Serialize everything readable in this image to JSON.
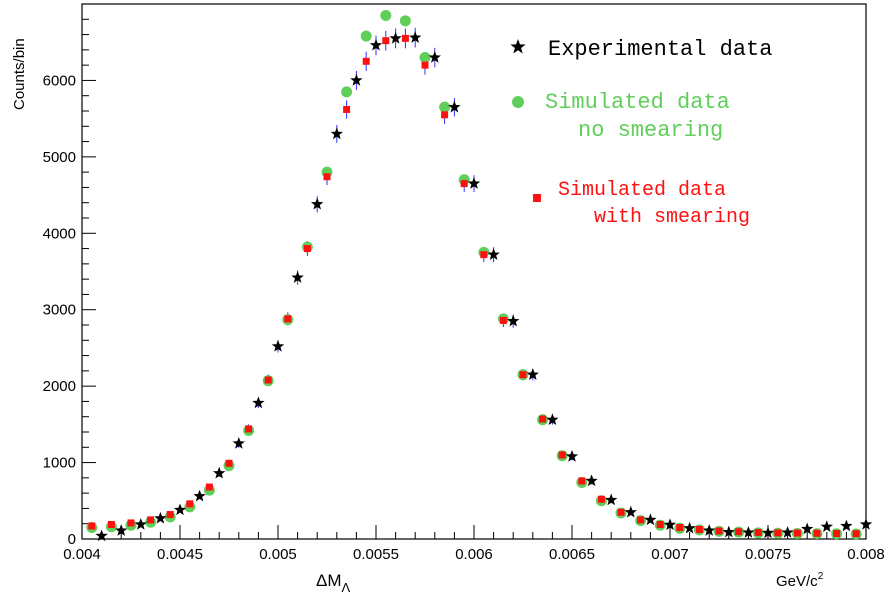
{
  "chart_data": {
    "type": "scatter",
    "xlabel_main": "ΔM",
    "xlabel_sub": "Λ",
    "xunit_main": "GeV/c",
    "xunit_sup": "2",
    "ylabel": "Counts/bin",
    "xlim": [
      0.004,
      0.008
    ],
    "ylim": [
      0,
      7000
    ],
    "grid": false,
    "legend_placement": "top-right",
    "x_ticks": [
      "0.004",
      "0.0045",
      "0.005",
      "0.0055",
      "0.006",
      "0.0065",
      "0.007",
      "0.0075",
      "0.008"
    ],
    "y_ticks": [
      "0",
      "1000",
      "2000",
      "3000",
      "4000",
      "5000",
      "6000"
    ],
    "colors": {
      "experimental": "#000000",
      "no_smearing": "#5fcf5a",
      "with_smearing": "#ff1010",
      "errorbar": "#3030ff"
    },
    "series": [
      {
        "name": "Experimental data",
        "name_lines": [
          "Experimental data"
        ],
        "marker": "star",
        "x": [
          0.0041,
          0.0042,
          0.0043,
          0.0044,
          0.0045,
          0.0046,
          0.0047,
          0.0048,
          0.0049,
          0.005,
          0.0051,
          0.0052,
          0.0053,
          0.0054,
          0.0055,
          0.0056,
          0.0057,
          0.0058,
          0.0059,
          0.006,
          0.0061,
          0.0062,
          0.0063,
          0.0064,
          0.0065,
          0.0066,
          0.0067,
          0.0068,
          0.0069,
          0.007,
          0.0071,
          0.0072,
          0.0073,
          0.0074,
          0.0075,
          0.0076,
          0.0077,
          0.0078,
          0.0079,
          0.008
        ],
        "y": [
          40,
          110,
          190,
          270,
          380,
          560,
          860,
          1250,
          1780,
          2520,
          3420,
          4380,
          5300,
          6000,
          6460,
          6550,
          6560,
          6300,
          5650,
          4650,
          3720,
          2850,
          2150,
          1560,
          1080,
          760,
          510,
          350,
          250,
          185,
          140,
          110,
          90,
          85,
          80,
          85,
          130,
          160,
          170,
          190
        ]
      },
      {
        "name": "Simulated data",
        "name_lines": [
          "Simulated data",
          "no smearing"
        ],
        "marker": "circle",
        "x": [
          0.00405,
          0.00415,
          0.00425,
          0.00435,
          0.00445,
          0.00455,
          0.00465,
          0.00475,
          0.00485,
          0.00495,
          0.00505,
          0.00515,
          0.00525,
          0.00535,
          0.00545,
          0.00555,
          0.00565,
          0.00575,
          0.00585,
          0.00595,
          0.00605,
          0.00615,
          0.00625,
          0.00635,
          0.00645,
          0.00655,
          0.00665,
          0.00675,
          0.00685,
          0.00695,
          0.00705,
          0.00715,
          0.00725,
          0.00735,
          0.00745,
          0.00755,
          0.00765,
          0.00775,
          0.00785,
          0.00795
        ],
        "y": [
          150,
          160,
          180,
          220,
          290,
          420,
          640,
          960,
          1420,
          2070,
          2870,
          3820,
          4800,
          5850,
          6580,
          6850,
          6780,
          6300,
          5650,
          4700,
          3750,
          2880,
          2150,
          1560,
          1090,
          740,
          500,
          340,
          240,
          180,
          140,
          120,
          100,
          90,
          80,
          75,
          72,
          70,
          68,
          65
        ]
      },
      {
        "name": "Simulated data",
        "name_lines": [
          "Simulated data",
          "with smearing"
        ],
        "marker": "square",
        "x": [
          0.00405,
          0.00415,
          0.00425,
          0.00435,
          0.00445,
          0.00455,
          0.00465,
          0.00475,
          0.00485,
          0.00495,
          0.00505,
          0.00515,
          0.00525,
          0.00535,
          0.00545,
          0.00555,
          0.00565,
          0.00575,
          0.00585,
          0.00595,
          0.00605,
          0.00615,
          0.00625,
          0.00635,
          0.00645,
          0.00655,
          0.00665,
          0.00675,
          0.00685,
          0.00695,
          0.00705,
          0.00715,
          0.00725,
          0.00735,
          0.00745,
          0.00755,
          0.00765,
          0.00775,
          0.00785,
          0.00795
        ],
        "y": [
          170,
          190,
          210,
          250,
          320,
          460,
          680,
          990,
          1440,
          2080,
          2880,
          3800,
          4740,
          5620,
          6250,
          6520,
          6550,
          6200,
          5550,
          4650,
          3720,
          2860,
          2150,
          1570,
          1100,
          760,
          520,
          350,
          250,
          190,
          150,
          125,
          105,
          95,
          85,
          80,
          78,
          75,
          72,
          70
        ]
      }
    ]
  }
}
